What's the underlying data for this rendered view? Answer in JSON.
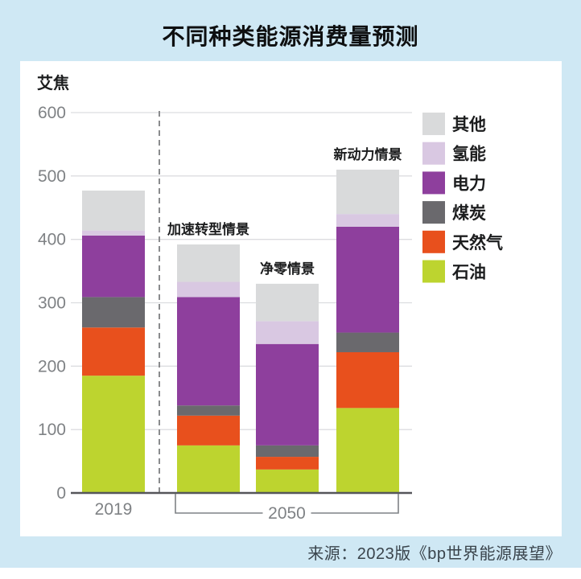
{
  "title": "不同种类能源消费量预测",
  "unit_label": "艾焦",
  "source": "来源：2023版《bp世界能源展望》",
  "colors": {
    "background": "#cfe8f4",
    "panel": "#ffffff",
    "axis_line": "#55565a",
    "grid_line": "#dcdde0",
    "tick_text": "#7f8285",
    "divider_line": "#8a8b8d",
    "annotation_text": "#1c1d1e"
  },
  "chart_data": {
    "type": "bar",
    "stacked": true,
    "title": "不同种类能源消费量预测",
    "ylabel": "艾焦",
    "xlabel": "",
    "ylim": [
      0,
      600
    ],
    "yticks": [
      0,
      100,
      200,
      300,
      400,
      500,
      600
    ],
    "grid": true,
    "legend_position": "right",
    "categories": [
      "2019",
      "加速转型情景",
      "净零情景",
      "新动力情景"
    ],
    "series": [
      {
        "name": "石油",
        "color": "#bdd42f",
        "values": [
          185,
          75,
          37,
          134
        ]
      },
      {
        "name": "天然气",
        "color": "#e8501d",
        "values": [
          76,
          47,
          20,
          88
        ]
      },
      {
        "name": "煤炭",
        "color": "#6a696d",
        "values": [
          48,
          16,
          18,
          31
        ]
      },
      {
        "name": "电力",
        "color": "#8e3f9d",
        "values": [
          97,
          171,
          160,
          167
        ]
      },
      {
        "name": "氢能",
        "color": "#d9c8e2",
        "values": [
          8,
          24,
          36,
          20
        ]
      },
      {
        "name": "其他",
        "color": "#d9dadb",
        "values": [
          63,
          59,
          59,
          70
        ]
      }
    ],
    "totals": [
      477,
      392,
      330,
      510
    ],
    "legend": [
      "其他",
      "氢能",
      "电力",
      "煤炭",
      "天然气",
      "石油"
    ],
    "bar_annotations": [
      {
        "bar": 1,
        "label": "加速转型情景"
      },
      {
        "bar": 2,
        "label": "净零情景"
      },
      {
        "bar": 3,
        "label": "新动力情景"
      }
    ],
    "x_axis_groups": [
      {
        "label": "2019",
        "bars": [
          0
        ],
        "style": "plain"
      },
      {
        "label": "2050",
        "bars": [
          1,
          2,
          3
        ],
        "style": "bracket"
      }
    ]
  }
}
